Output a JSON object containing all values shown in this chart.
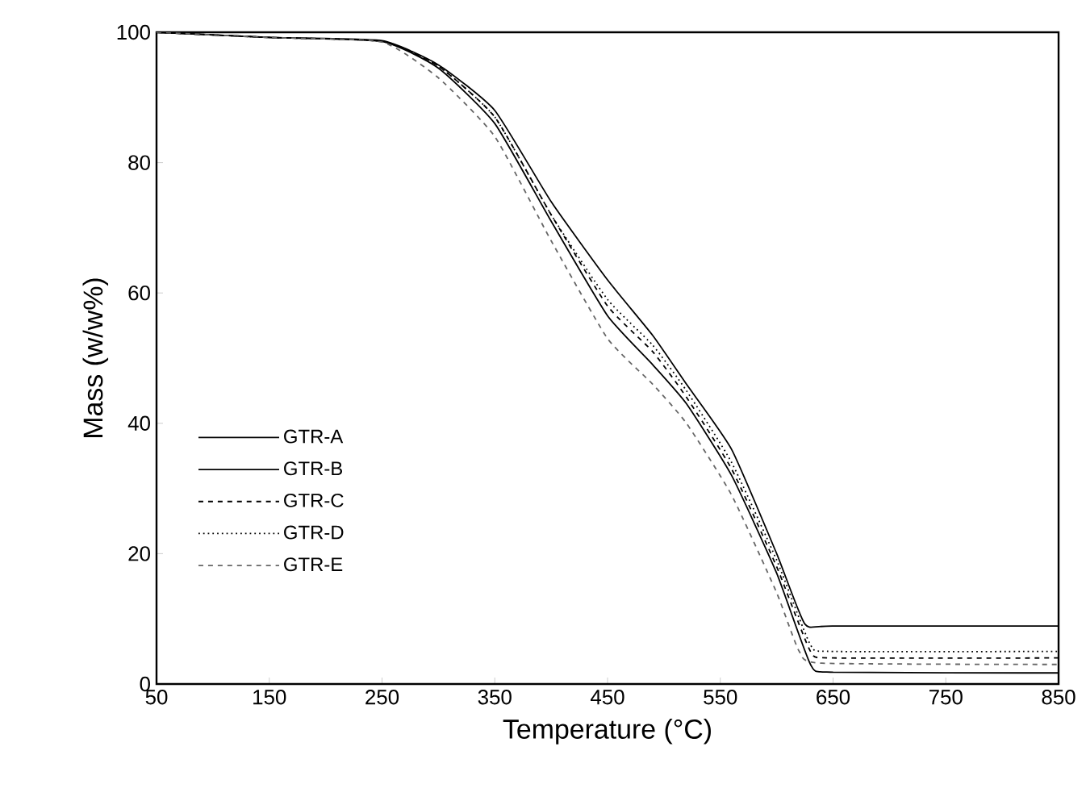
{
  "chart_data": {
    "type": "line",
    "xlabel": "Temperature (°C)",
    "ylabel": "Mass (w/w%)",
    "xlim": [
      50,
      850
    ],
    "xticks": [
      50,
      150,
      250,
      350,
      450,
      550,
      650,
      750,
      850
    ],
    "ylim": [
      0,
      100
    ],
    "yticks": [
      0,
      20,
      40,
      60,
      80,
      100
    ],
    "grid": false,
    "legend": "left",
    "marker": "none",
    "series": [
      {
        "name": "GTR-A",
        "color": "#000000",
        "line_style": "solid",
        "x": [
          50,
          150,
          250,
          300,
          350,
          400,
          450,
          490,
          520,
          560,
          600,
          630,
          650,
          850
        ],
        "values": [
          100,
          99.2,
          98.6,
          94.5,
          86,
          71,
          56.5,
          49,
          43,
          32,
          17,
          3,
          1.8,
          1.7
        ]
      },
      {
        "name": "GTR-B",
        "color": "#000000",
        "line_style": "solid",
        "x": [
          50,
          150,
          250,
          300,
          350,
          400,
          450,
          490,
          520,
          560,
          600,
          625,
          650,
          850
        ],
        "values": [
          100,
          99.2,
          98.7,
          95,
          88,
          74,
          62,
          53.5,
          46,
          36,
          20,
          9.2,
          8.9,
          8.9
        ]
      },
      {
        "name": "GTR-C",
        "color": "#000000",
        "line_style": "dashed",
        "x": [
          50,
          150,
          250,
          300,
          350,
          400,
          450,
          490,
          520,
          560,
          600,
          630,
          650,
          850
        ],
        "values": [
          100,
          99.2,
          98.6,
          94.8,
          87,
          72,
          58,
          51,
          44,
          33,
          18,
          5,
          4.0,
          4.0
        ]
      },
      {
        "name": "GTR-D",
        "color": "#000000",
        "line_style": "dotted",
        "x": [
          50,
          150,
          250,
          300,
          350,
          400,
          450,
          490,
          520,
          560,
          600,
          630,
          650,
          850
        ],
        "values": [
          100,
          99.2,
          98.6,
          94.8,
          87,
          72,
          59,
          52,
          45,
          34,
          19,
          6,
          5.0,
          5.0
        ]
      },
      {
        "name": "GTR-E",
        "color": "#666666",
        "line_style": "dashed",
        "x": [
          50,
          150,
          250,
          300,
          350,
          400,
          450,
          490,
          520,
          560,
          600,
          620,
          640,
          850
        ],
        "values": [
          100,
          99.2,
          98.5,
          93,
          84,
          68,
          53,
          46,
          40,
          29,
          14,
          5,
          3.2,
          3.0
        ]
      }
    ]
  }
}
